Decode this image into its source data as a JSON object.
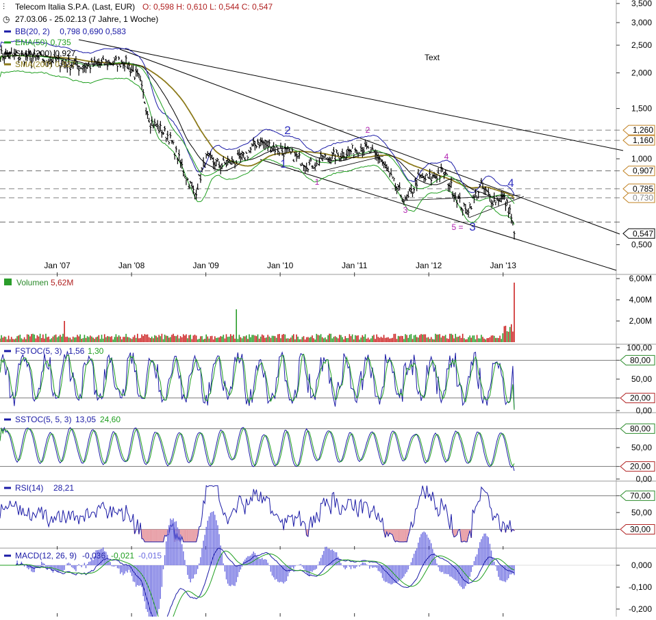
{
  "colors": {
    "price": "#000000",
    "bb": "#1a1aa6",
    "ema": "#1e9e1e",
    "sma_black": "#000000",
    "sma_olive": "#8c7a1a",
    "vol_up": "#2a9d2a",
    "vol_down": "#cc2222",
    "stoch_k": "#1a1aa6",
    "stoch_d": "#1e9e1e",
    "rsi": "#1a1aa6",
    "rsi_fill": "#e8a0a8",
    "macd_line": "#1a1aa6",
    "macd_signal": "#1e9e1e",
    "macd_hist": "#6a6ae0",
    "label_high_up": "#3030c0",
    "label_num": "#b020b0",
    "tag_green": "#2a8a2a",
    "tag_red": "#b02020",
    "tag_orange": "#c08020",
    "grid": "#888888"
  },
  "header": {
    "instrument": "Telecom Italia S.P.A. (Last, EUR)",
    "ohlc": "O: 0,598  H: 0,610  L: 0,544  C: 0,547",
    "range": "27.03.06 - 25.02.13 (7 Jahre, 1 Woche)",
    "legend": [
      {
        "name": "BB(20, 2)",
        "v1": "0,798",
        "v2": "0,690",
        "v3": "0,583",
        "color": "#1a1aa6"
      },
      {
        "name": "EMA(50)",
        "v1": "0,735",
        "color": "#1e9e1e"
      },
      {
        "name": "SMA(200)",
        "v1": "0,927",
        "color": "#000000"
      },
      {
        "name": "SMA(200)",
        "v1": "0,927",
        "color": "#8c7a1a"
      }
    ]
  },
  "annotation_text": "Text",
  "x_axis_labels": [
    "Jan '07",
    "Jan '08",
    "Jan '09",
    "Jan '10",
    "Jan '11",
    "Jan '12",
    "Jan '13"
  ],
  "chart_data": [
    {
      "type": "line",
      "title": "Telecom Italia S.P.A. (Last, EUR)",
      "scale": "log",
      "y_ticks": [
        "3,500",
        "3,000",
        "2,500",
        "2,000",
        "1,500",
        "1,000",
        "0,500"
      ],
      "price_tags": [
        {
          "value": "1,260",
          "kind": "line"
        },
        {
          "value": "1,160",
          "kind": "line"
        },
        {
          "value": "0,907",
          "kind": "line"
        },
        {
          "value": "0,785",
          "kind": "line"
        },
        {
          "value": "0,730",
          "kind": "line"
        },
        {
          "value": "0,547",
          "kind": "last"
        }
      ],
      "wave_labels": [
        {
          "text": "2",
          "style": "big"
        },
        {
          "text": "1",
          "style": "big"
        },
        {
          "text": "1",
          "style": "small"
        },
        {
          "text": "2",
          "style": "small"
        },
        {
          "text": "3",
          "style": "small"
        },
        {
          "text": "4",
          "style": "small"
        },
        {
          "text": "4",
          "style": "big"
        },
        {
          "text": "5 =",
          "style": "small"
        },
        {
          "text": "3",
          "style": "big"
        }
      ],
      "series": [
        {
          "name": "Price",
          "x": [
            2006.3,
            2006.7,
            2007.0,
            2007.3,
            2007.6,
            2007.9,
            2008.1,
            2008.25,
            2008.5,
            2008.75,
            2008.85,
            2009.0,
            2009.2,
            2009.5,
            2009.7,
            2009.9,
            2010.1,
            2010.4,
            2010.6,
            2010.9,
            2011.1,
            2011.35,
            2011.55,
            2011.7,
            2011.85,
            2012.0,
            2012.2,
            2012.35,
            2012.5,
            2012.7,
            2012.85,
            2013.0,
            2013.1,
            2013.15
          ],
          "values": [
            2.3,
            2.25,
            2.2,
            2.1,
            2.15,
            2.2,
            1.9,
            1.35,
            1.2,
            0.85,
            0.75,
            1.0,
            0.95,
            1.0,
            1.15,
            1.1,
            1.05,
            0.95,
            1.0,
            1.05,
            1.1,
            1.0,
            0.8,
            0.7,
            0.85,
            0.85,
            0.9,
            0.75,
            0.65,
            0.8,
            0.72,
            0.73,
            0.65,
            0.547
          ]
        }
      ]
    },
    {
      "type": "bar",
      "title": "Volumen",
      "current": "5,62M",
      "y_ticks": [
        "6,00M",
        "4,00M",
        "2,00M"
      ]
    },
    {
      "type": "line",
      "title": "FSTOC(5, 3)",
      "current": [
        "1,56",
        "1,30"
      ],
      "y_ticks": [
        "100,00",
        "80,00",
        "50,00",
        "20,00",
        "0,00"
      ],
      "tags": [
        "80,00",
        "20,00"
      ]
    },
    {
      "type": "line",
      "title": "SSTOC(5, 5, 3)",
      "current": [
        "13,05",
        "24,60"
      ],
      "y_ticks": [
        "80,00",
        "50,00",
        "20,00",
        "0,00"
      ],
      "tags": [
        "80,00",
        "20,00"
      ]
    },
    {
      "type": "line",
      "title": "RSI(14)",
      "current": [
        "28,21"
      ],
      "y_ticks": [
        "70,00",
        "50,00",
        "30,00"
      ],
      "tags": [
        "70,00",
        "30,00"
      ]
    },
    {
      "type": "line",
      "title": "MACD(12, 26, 9)",
      "current": [
        "-0,036",
        "-0,021",
        "-0,015"
      ],
      "y_ticks": [
        "0,000",
        "-0,100",
        "-0,200"
      ]
    }
  ]
}
